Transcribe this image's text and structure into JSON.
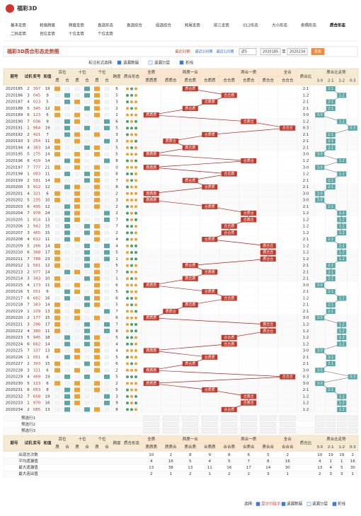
{
  "logo": "福彩3D",
  "nav": [
    "基本走势",
    "和值跨度",
    "跨度走势",
    "直选形态",
    "直选综合",
    "组选综合",
    "和尾走势",
    "前三走势",
    "012形态",
    "大小形态",
    "奇偶形态",
    "质合形态"
  ],
  "nav2": [
    "二码走势",
    "百位走势",
    "十位走势",
    "个位走势"
  ],
  "title": "福彩3D质合形态走势图",
  "period_links": [
    "最近50期",
    "最近100期",
    "最近120期"
  ],
  "select": "近5",
  "from": "2020185",
  "to_label": "至",
  "to": "2020234",
  "button": "查看",
  "mark_label": "标注形式选择:",
  "mark_options": [
    "遗漏数据",
    "遗漏分层",
    "折线"
  ],
  "header": {
    "cols": [
      "期号",
      "试机",
      "奖号",
      "和值"
    ],
    "positions": [
      "百位",
      "十位",
      "个位"
    ],
    "sub": [
      "质",
      "合"
    ],
    "span": "跨度",
    "shape_col": "质合形态",
    "groups": [
      "全质",
      "两质一合",
      "两合一质",
      "全合"
    ],
    "shapes": [
      "质质质",
      "质质合",
      "质合质",
      "合质质",
      "合合质",
      "合质合",
      "质合合",
      "合合合"
    ],
    "ratio": "质合比",
    "trend": "质合比走势",
    "ratios": [
      "3:0",
      "2:1",
      "1:2",
      "0:3"
    ]
  },
  "rows": [
    [
      "2020185",
      "2",
      "397",
      "19",
      "6",
      "质合质",
      "2:1"
    ],
    [
      "2020186",
      "3",
      "045",
      "9",
      "5",
      "合合质",
      "1:2"
    ],
    [
      "2020187",
      "4",
      "023",
      "5",
      "3",
      "合质质",
      "2:1"
    ],
    [
      "2020188",
      "5",
      "345",
      "12",
      "2",
      "质合质",
      "2:1"
    ],
    [
      "2020189",
      "6",
      "123",
      "6",
      "2",
      "质质质",
      "3:0"
    ],
    [
      "2020190",
      "7",
      "036",
      "9",
      "6",
      "合质合",
      "1:2"
    ],
    [
      "2020191",
      "1",
      "964",
      "19",
      "5",
      "合合合",
      "0:3"
    ],
    [
      "2020192",
      "2",
      "421",
      "7",
      "3",
      "合质质",
      "2:1"
    ],
    [
      "2020193",
      "3",
      "254",
      "11",
      "3",
      "质质合",
      "2:1"
    ],
    [
      "2020194",
      "4",
      "383",
      "14",
      "5",
      "质合质",
      "2:1"
    ],
    [
      "2020195",
      "5",
      "275",
      "14",
      "5",
      "质质质",
      "3:0"
    ],
    [
      "2020196",
      "6",
      "419",
      "14",
      "8",
      "合质合",
      "1:2"
    ],
    [
      "2020197",
      "7",
      "777",
      "21",
      "0",
      "质质质",
      "3:0"
    ],
    [
      "2020198",
      "1",
      "083",
      "11",
      "8",
      "合合质",
      "1:2"
    ],
    [
      "2020199",
      "2",
      "581",
      "14",
      "7",
      "质合质",
      "2:1"
    ],
    [
      "2020200",
      "3",
      "912",
      "12",
      "8",
      "合质质",
      "2:1"
    ],
    [
      "2020201",
      "4",
      "321",
      "6",
      "2",
      "质质质",
      "3:0"
    ],
    [
      "2020202",
      "5",
      "235",
      "10",
      "3",
      "质质质",
      "3:0"
    ],
    [
      "2020203",
      "6",
      "435",
      "12",
      "2",
      "合质质",
      "2:1"
    ],
    [
      "2020204",
      "7",
      "978",
      "24",
      "2",
      "合质合",
      "1:2"
    ],
    [
      "2020205",
      "1",
      "814",
      "13",
      "7",
      "合质合",
      "1:2"
    ],
    [
      "2020206",
      "2",
      "942",
      "15",
      "7",
      "合合质",
      "1:2"
    ],
    [
      "2020207",
      "3",
      "465",
      "15",
      "2",
      "合合质",
      "1:2"
    ],
    [
      "2020208",
      "4",
      "632",
      "11",
      "4",
      "合质质",
      "2:1"
    ],
    [
      "2020209",
      "5",
      "266",
      "14",
      "4",
      "质合合",
      "1:2"
    ],
    [
      "2020210",
      "6",
      "368",
      "17",
      "5",
      "质合合",
      "1:2"
    ],
    [
      "2020211",
      "7",
      "788",
      "23",
      "1",
      "质合合",
      "1:2"
    ],
    [
      "2020212",
      "1",
      "561",
      "12",
      "5",
      "质合质",
      "2:1"
    ],
    [
      "2020213",
      "2",
      "077",
      "14",
      "7",
      "合质质",
      "2:1"
    ],
    [
      "2020214",
      "3",
      "343",
      "10",
      "1",
      "质合质",
      "2:1"
    ],
    [
      "2020215",
      "4",
      "173",
      "11",
      "6",
      "质质质",
      "3:0"
    ],
    [
      "2020216",
      "5",
      "051",
      "6",
      "5",
      "合质质",
      "2:1"
    ],
    [
      "2020217",
      "6",
      "682",
      "16",
      "6",
      "合合质",
      "1:2"
    ],
    [
      "2020218",
      "7",
      "383",
      "14",
      "5",
      "质合质",
      "2:1"
    ],
    [
      "2020219",
      "1",
      "229",
      "13",
      "7",
      "质质合",
      "2:1"
    ],
    [
      "2020220",
      "2",
      "177",
      "15",
      "6",
      "质质质",
      "3:0"
    ],
    [
      "2020221",
      "3",
      "296",
      "17",
      "7",
      "质合合",
      "1:2"
    ],
    [
      "2020222",
      "4",
      "380",
      "11",
      "8",
      "质合合",
      "1:2"
    ],
    [
      "2020223",
      "5",
      "945",
      "18",
      "5",
      "合合质",
      "1:2"
    ],
    [
      "2020224",
      "6",
      "662",
      "14",
      "4",
      "合合质",
      "1:2"
    ],
    [
      "2020225",
      "7",
      "337",
      "13",
      "4",
      "质质质",
      "3:0"
    ],
    [
      "2020226",
      "1",
      "051",
      "6",
      "5",
      "合质质",
      "2:1"
    ],
    [
      "2020227",
      "2",
      "393",
      "15",
      "6",
      "质合质",
      "2:1"
    ],
    [
      "2020228",
      "3",
      "321",
      "6",
      "2",
      "质质质",
      "3:0"
    ],
    [
      "2020229",
      "4",
      "469",
      "19",
      "5",
      "合合合",
      "0:3"
    ],
    [
      "2020230",
      "5",
      "123",
      "6",
      "2",
      "质质质",
      "3:0"
    ],
    [
      "2020231",
      "6",
      "053",
      "8",
      "5",
      "合质质",
      "2:1"
    ],
    [
      "2020232",
      "7",
      "658",
      "19",
      "3",
      "合质合",
      "1:2"
    ],
    [
      "2020233",
      "1",
      "970",
      "16",
      "9",
      "合质合",
      "1:2"
    ],
    [
      "2020234",
      "2",
      "085",
      "13",
      "8",
      "合合质",
      "1:2"
    ]
  ],
  "preset_rows": [
    "预选行1",
    "预选行2",
    "预选行3"
  ],
  "stats": [
    {
      "label": "出现总次数",
      "values": [
        10,
        2,
        8,
        9,
        8,
        6,
        5,
        2,
        10,
        19,
        19,
        2
      ]
    },
    {
      "label": "平均遗漏值",
      "values": [
        4,
        16,
        5,
        4,
        5,
        7,
        8,
        16,
        4,
        1,
        1,
        16
      ]
    },
    {
      "label": "最大遗漏值",
      "values": [
        13,
        38,
        13,
        11,
        16,
        17,
        14,
        30,
        13,
        4,
        5,
        30
      ]
    },
    {
      "label": "最大连出值",
      "values": [
        2,
        1,
        2,
        1,
        2,
        2,
        3,
        1,
        2,
        3,
        3,
        1
      ]
    }
  ],
  "footer_label": "选择:",
  "footer_options": [
    "显示行提示",
    "遗漏数据",
    "遗漏分层",
    "折线"
  ]
}
